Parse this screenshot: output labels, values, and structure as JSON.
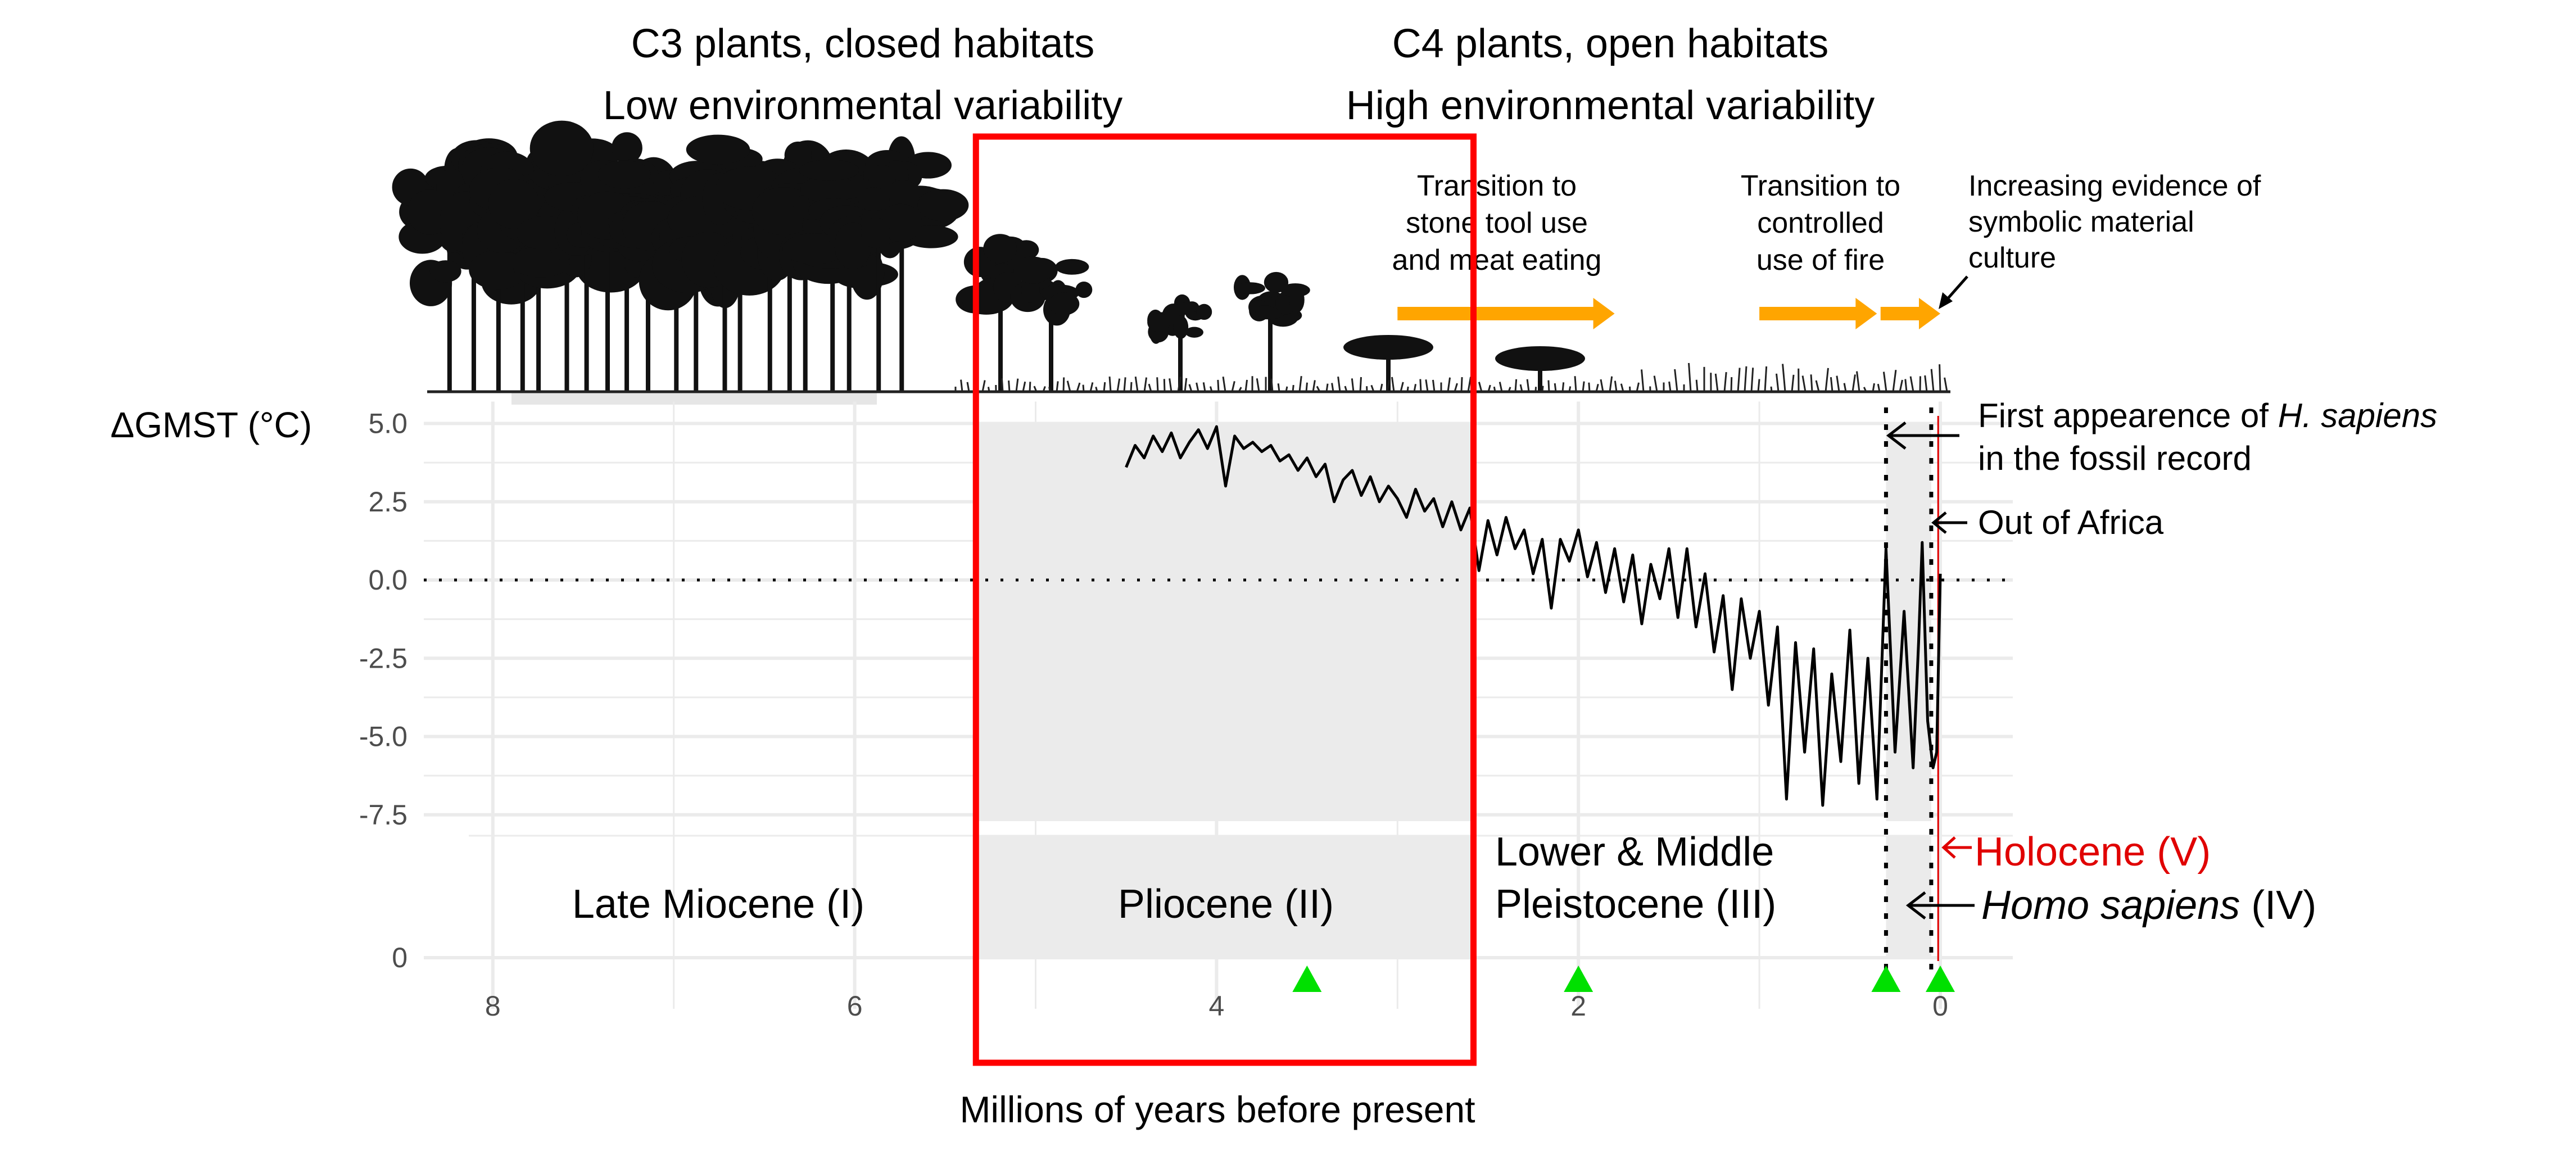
{
  "header": {
    "left_line1": "C3 plants, closed habitats",
    "left_line2": "Low environmental variability",
    "right_line1": "C4 plants, open habitats",
    "right_line2": "High environmental variability"
  },
  "transitions": [
    {
      "lines": [
        "Transition to",
        "stone tool use",
        "and meat eating"
      ]
    },
    {
      "lines": [
        "Transition to",
        "controlled",
        "use of fire"
      ]
    },
    {
      "lines": [
        "Increasing evidence of",
        "symbolic material",
        "culture"
      ]
    }
  ],
  "annotations": {
    "first_appearance_prefix": "First appearence of ",
    "first_appearance_italic": "H. sapiens",
    "first_appearance_line2": "in the fossil record",
    "out_of_africa": "Out of Africa",
    "holocene": "Holocene (V)",
    "homo_sapiens_italic": "Homo sapiens",
    "homo_sapiens_suffix": " (IV)"
  },
  "eras": {
    "late_miocene": "Late Miocene (I)",
    "pliocene": "Pliocene (II)",
    "pleistocene_line1": "Lower & Middle",
    "pleistocene_line2": "Pleistocene (III)"
  },
  "colors": {
    "highlight_box": "#ff0000",
    "holocene": "#e00000",
    "arrow_orange": "#ffa500",
    "marker_green": "#00e000",
    "shade": "#ebebeb"
  },
  "chart_data": {
    "type": "line",
    "title": "",
    "xlabel": "Millions of years before present",
    "ylabel": "ΔGMST (°C)",
    "xlim": [
      8.4,
      -0.4
    ],
    "ylim": [
      -8.2,
      5.7
    ],
    "x_ticks": [
      "8",
      "6",
      "4",
      "2",
      "0"
    ],
    "x_tick_values": [
      8,
      6,
      4,
      2,
      0
    ],
    "y_ticks": [
      "5.0",
      "2.5",
      "0.0",
      "-2.5",
      "-5.0",
      "-7.5"
    ],
    "y_tick_values": [
      5,
      2.5,
      0,
      -2.5,
      -5,
      -7.5
    ],
    "lower_panel_tick": "0",
    "reference_line_y": 0,
    "shaded_periods_ma": [
      [
        5.33,
        2.58
      ],
      [
        0.3,
        0.05
      ]
    ],
    "highlight_box_ma": [
      5.33,
      2.58
    ],
    "dotted_verticals_ma": [
      0.3,
      0.05
    ],
    "holocene_line_ma": 0.0117,
    "green_markers_ma": [
      3.5,
      2.0,
      0.3,
      0.0
    ],
    "transition_arrows_ma": [
      [
        3.0,
        1.8
      ],
      [
        1.0,
        0.35
      ],
      [
        0.33,
        0.0
      ]
    ],
    "series": [
      {
        "name": "ΔGMST",
        "x": [
          4.5,
          4.45,
          4.4,
          4.35,
          4.3,
          4.25,
          4.2,
          4.15,
          4.1,
          4.05,
          4.0,
          3.95,
          3.9,
          3.85,
          3.8,
          3.75,
          3.7,
          3.65,
          3.6,
          3.55,
          3.5,
          3.45,
          3.4,
          3.35,
          3.3,
          3.25,
          3.2,
          3.15,
          3.1,
          3.05,
          3.0,
          2.95,
          2.9,
          2.85,
          2.8,
          2.75,
          2.7,
          2.65,
          2.6,
          2.55,
          2.5,
          2.45,
          2.4,
          2.35,
          2.3,
          2.25,
          2.2,
          2.15,
          2.1,
          2.05,
          2.0,
          1.95,
          1.9,
          1.85,
          1.8,
          1.75,
          1.7,
          1.65,
          1.6,
          1.55,
          1.5,
          1.45,
          1.4,
          1.35,
          1.3,
          1.25,
          1.2,
          1.15,
          1.1,
          1.05,
          1.0,
          0.95,
          0.9,
          0.85,
          0.8,
          0.75,
          0.7,
          0.65,
          0.6,
          0.55,
          0.5,
          0.45,
          0.4,
          0.35,
          0.3,
          0.25,
          0.2,
          0.15,
          0.12,
          0.1,
          0.07,
          0.04,
          0.02,
          0.0
        ],
        "y": [
          3.6,
          4.3,
          3.9,
          4.6,
          4.1,
          4.7,
          3.9,
          4.4,
          4.8,
          4.2,
          4.9,
          3.0,
          4.6,
          4.2,
          4.4,
          4.1,
          4.3,
          3.8,
          4.0,
          3.5,
          3.9,
          3.3,
          3.7,
          2.5,
          3.2,
          3.5,
          2.7,
          3.3,
          2.5,
          3.0,
          2.6,
          2.0,
          2.9,
          2.2,
          2.6,
          1.7,
          2.5,
          1.6,
          2.3,
          0.3,
          1.9,
          0.8,
          2.0,
          1.0,
          1.6,
          0.2,
          1.3,
          -0.9,
          1.3,
          0.6,
          1.6,
          0.1,
          1.2,
          -0.4,
          1.0,
          -0.7,
          0.8,
          -1.4,
          0.5,
          -0.6,
          1.0,
          -1.2,
          1.0,
          -1.5,
          0.2,
          -2.3,
          -0.5,
          -3.5,
          -0.6,
          -2.5,
          -1.0,
          -4.0,
          -1.5,
          -7.0,
          -2.0,
          -5.5,
          -2.2,
          -7.2,
          -3.0,
          -5.8,
          -1.6,
          -6.5,
          -2.5,
          -7.0,
          1.0,
          -5.5,
          -1.0,
          -6.0,
          -2.0,
          1.2,
          -4.5,
          -6.0,
          -5.5,
          0.2
        ]
      }
    ]
  }
}
